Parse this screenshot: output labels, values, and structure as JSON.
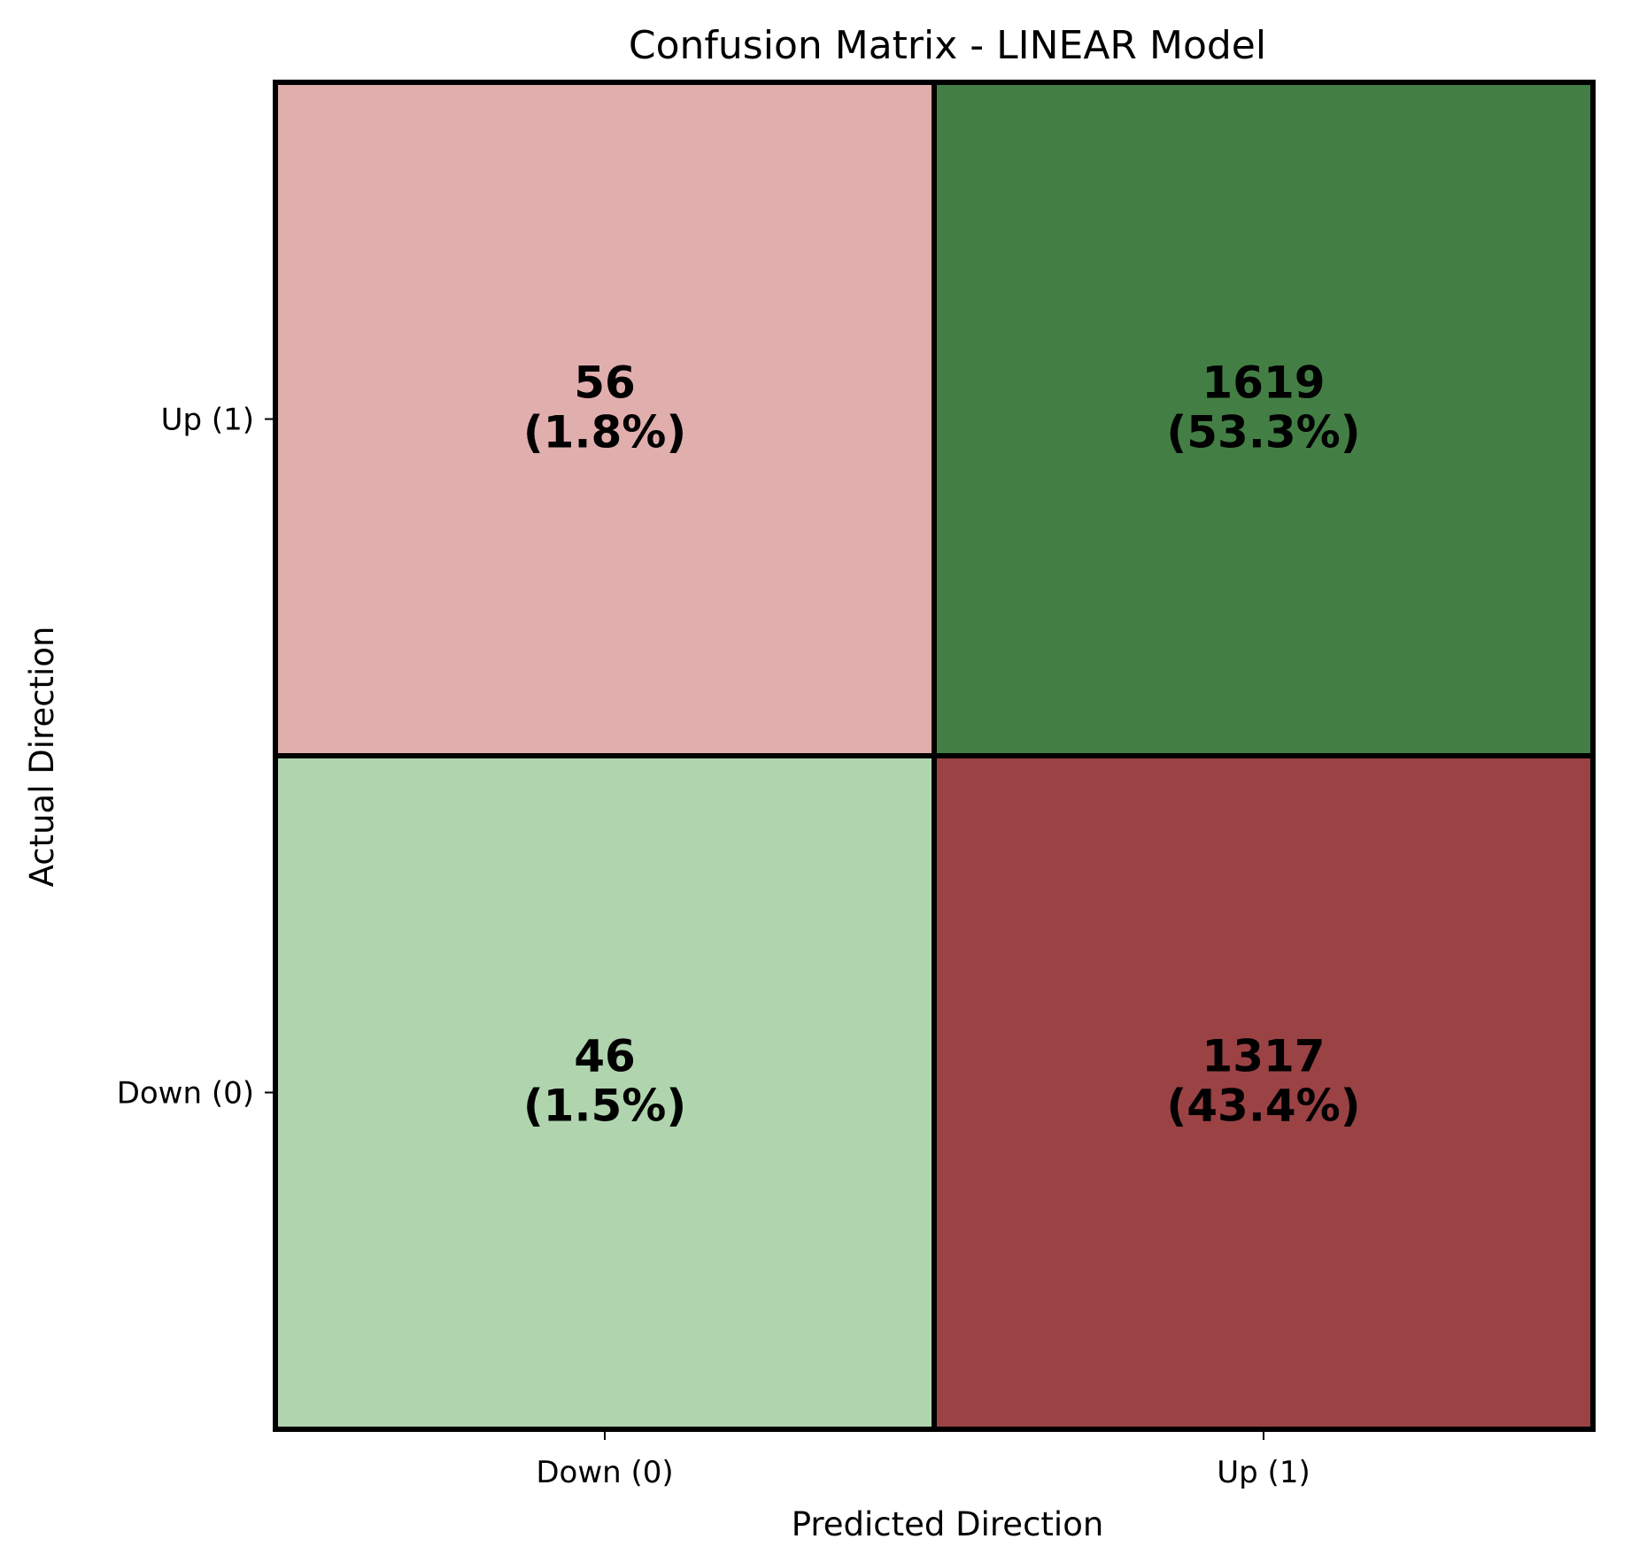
{
  "chart_data": {
    "type": "heatmap",
    "title": "Confusion Matrix - LINEAR Model",
    "xlabel": "Predicted Direction",
    "ylabel": "Actual Direction",
    "x_categories": [
      "Down (0)",
      "Up (1)"
    ],
    "y_categories": [
      "Up (1)",
      "Down (0)"
    ],
    "cells": [
      {
        "actual": "Up (1)",
        "predicted": "Down (0)",
        "count": 56,
        "percent_label": "(1.8%)",
        "color": "#e1aeae"
      },
      {
        "actual": "Up (1)",
        "predicted": "Up (1)",
        "count": 1619,
        "percent_label": "(53.3%)",
        "color": "#437f45"
      },
      {
        "actual": "Down (0)",
        "predicted": "Down (0)",
        "count": 46,
        "percent_label": "(1.5%)",
        "color": "#b0d5ae"
      },
      {
        "actual": "Down (0)",
        "predicted": "Up (1)",
        "count": 1317,
        "percent_label": "(43.4%)",
        "color": "#9b4244"
      }
    ],
    "grid": false
  }
}
